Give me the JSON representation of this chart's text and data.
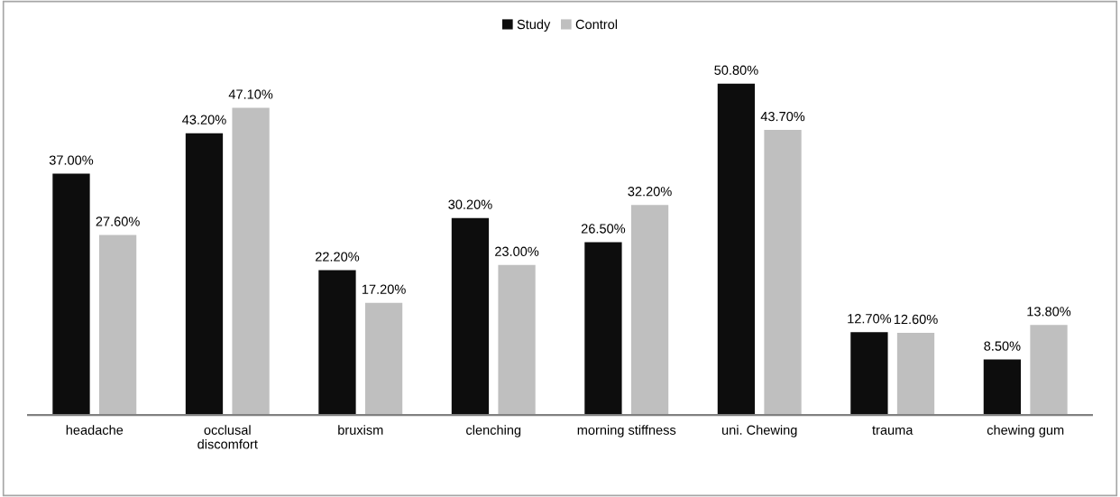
{
  "chart_data": {
    "type": "bar",
    "categories": [
      "headache",
      "occlusal\ndiscomfort",
      "bruxism",
      "clenching",
      "morning stiffness",
      "uni. Chewing",
      "trauma",
      "chewing gum"
    ],
    "series": [
      {
        "name": "Study",
        "color": "#0d0d0d",
        "values": [
          37.0,
          43.2,
          22.2,
          30.2,
          26.5,
          50.8,
          12.7,
          8.5
        ],
        "value_labels": [
          "37.00%",
          "43.20%",
          "22.20%",
          "30.20%",
          "26.50%",
          "50.80%",
          "12.70%",
          "8.50%"
        ]
      },
      {
        "name": "Control",
        "color": "#bfbfbf",
        "values": [
          27.6,
          47.1,
          17.2,
          23.0,
          32.2,
          43.7,
          12.6,
          13.8
        ],
        "value_labels": [
          "27.60%",
          "47.10%",
          "17.20%",
          "23.00%",
          "32.20%",
          "43.70%",
          "12.60%",
          "13.80%"
        ]
      }
    ],
    "legend": "top"
  }
}
